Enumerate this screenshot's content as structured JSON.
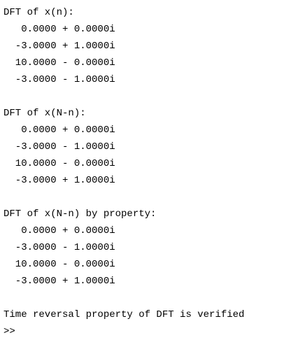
{
  "console": {
    "blocks": [
      {
        "header": "DFT of x(n):",
        "rows": [
          "   0.0000 + 0.0000i",
          "  -3.0000 + 1.0000i",
          "  10.0000 - 0.0000i",
          "  -3.0000 - 1.0000i"
        ]
      },
      {
        "header": "DFT of x(N-n):",
        "rows": [
          "   0.0000 + 0.0000i",
          "  -3.0000 - 1.0000i",
          "  10.0000 - 0.0000i",
          "  -3.0000 + 1.0000i"
        ]
      },
      {
        "header": "DFT of x(N-n) by property:",
        "rows": [
          "   0.0000 + 0.0000i",
          "  -3.0000 - 1.0000i",
          "  10.0000 - 0.0000i",
          "  -3.0000 + 1.0000i"
        ]
      }
    ],
    "message": "Time reversal property of DFT is verified",
    "prompt": ">>"
  }
}
